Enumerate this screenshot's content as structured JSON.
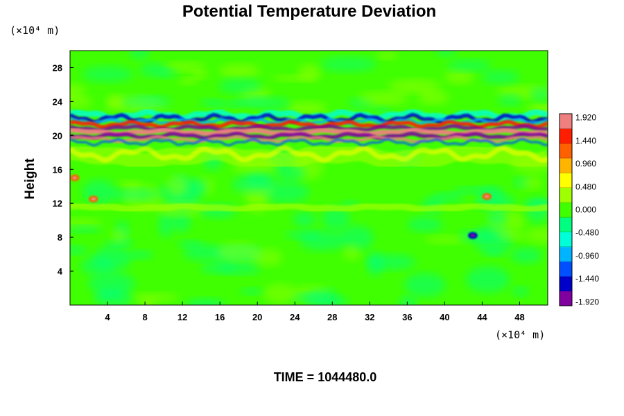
{
  "chart_data": {
    "type": "heatmap",
    "title": "Potential Temperature Deviation",
    "ylabel": "Height",
    "x_unit": "(×10⁴ m)",
    "y_unit": "(×10⁴ m)",
    "xlim": [
      0,
      51
    ],
    "ylim": [
      0,
      30
    ],
    "x_ticks": [
      "4",
      "8",
      "12",
      "16",
      "20",
      "24",
      "28",
      "32",
      "36",
      "40",
      "44",
      "48"
    ],
    "y_ticks": [
      "4",
      "8",
      "12",
      "16",
      "20",
      "24",
      "28"
    ],
    "colorbar": {
      "min": -2.0,
      "max": 2.0,
      "ticks": [
        "1.920",
        "1.440",
        "0.960",
        "0.480",
        "0.000",
        "-0.480",
        "-0.960",
        "-1.440",
        "-1.920"
      ],
      "colors": [
        "#8000a0",
        "#0000c8",
        "#0050ff",
        "#00b4ff",
        "#00ffd8",
        "#00ff80",
        "#40ff00",
        "#a0ff00",
        "#ffff00",
        "#ffb400",
        "#ff6000",
        "#ff1e00",
        "#f08080"
      ]
    },
    "features": [
      {
        "type": "band",
        "y_center": 20.4,
        "thickness": 2.0,
        "description": "strong alternating positive/negative layer"
      },
      {
        "type": "band",
        "y_center": 22.0,
        "thickness": 1.5,
        "description": "negative (blue) anomaly layer"
      },
      {
        "type": "band",
        "y_center": 17.5,
        "thickness": 2.0,
        "description": "weak positive (yellow) layer"
      },
      {
        "type": "band",
        "y_center": 11.5,
        "thickness": 0.8,
        "description": "weak positive layer"
      },
      {
        "type": "spot",
        "x": 44.5,
        "y": 12.8,
        "description": "positive anomaly"
      },
      {
        "type": "spot",
        "x": 43.0,
        "y": 8.2,
        "description": "negative anomaly"
      },
      {
        "type": "spot",
        "x": 2.5,
        "y": 12.5,
        "description": "positive anomaly"
      },
      {
        "type": "spot",
        "x": 0.5,
        "y": 15.0,
        "description": "positive anomaly"
      }
    ]
  },
  "footer": {
    "time_label": "TIME = 1044480.0"
  }
}
